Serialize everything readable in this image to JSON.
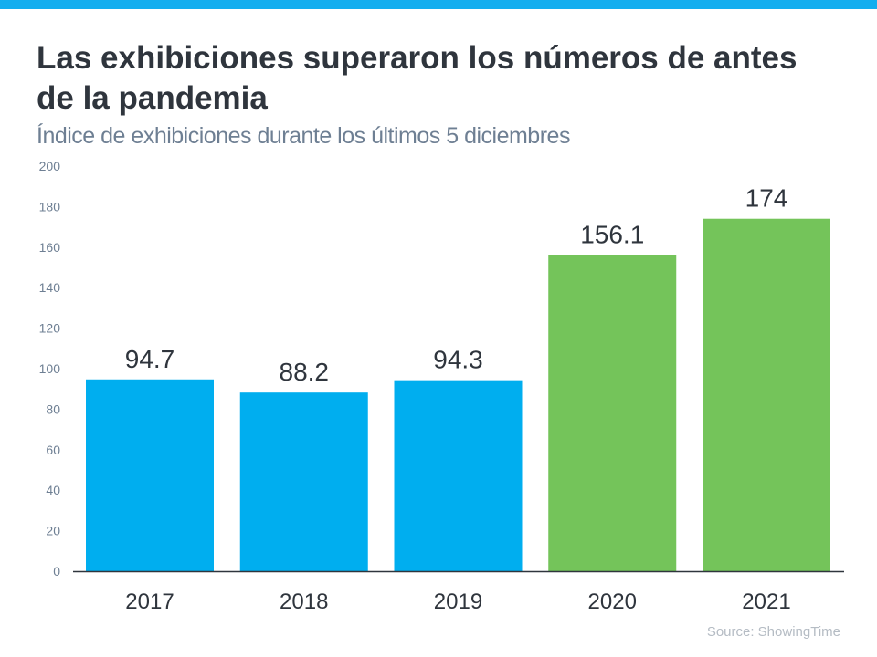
{
  "title": "Las exhibiciones superaron los números de antes de la pandemia",
  "subtitle": "Índice de exhibiciones durante los últimos 5 diciembres",
  "source": "Source: ShowingTime",
  "colors": {
    "top_bar": "#14aeef",
    "pre_pandemic": "#00aeef",
    "pandemic": "#74c45a"
  },
  "chart_data": {
    "type": "bar",
    "title": "Las exhibiciones superaron los números de antes de la pandemia",
    "subtitle": "Índice de exhibiciones durante los últimos 5 diciembres",
    "categories": [
      "2017",
      "2018",
      "2019",
      "2020",
      "2021"
    ],
    "values": [
      94.7,
      88.2,
      94.3,
      156.1,
      174
    ],
    "data_labels": [
      "94.7",
      "88.2",
      "94.3",
      "156.1",
      "174"
    ],
    "bar_colors": [
      "#00aeef",
      "#00aeef",
      "#00aeef",
      "#74c45a",
      "#74c45a"
    ],
    "ylim": [
      0,
      200
    ],
    "yticks": [
      "0",
      "20",
      "40",
      "60",
      "80",
      "100",
      "120",
      "140",
      "160",
      "180",
      "200"
    ],
    "xlabel": "",
    "ylabel": "",
    "grid": false,
    "legend": "none"
  }
}
